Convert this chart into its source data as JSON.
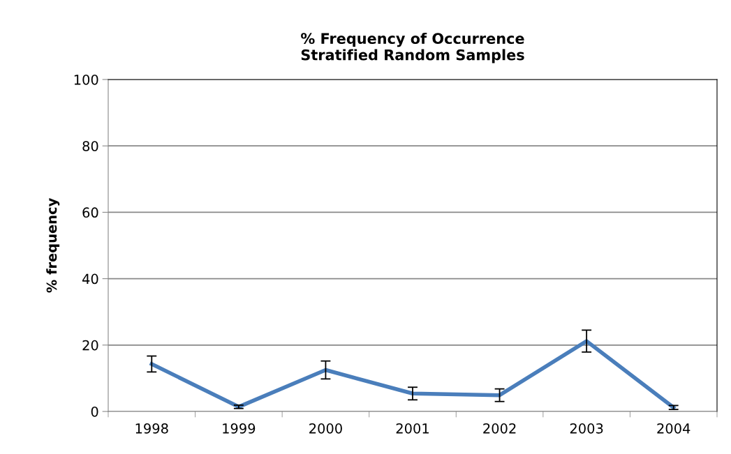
{
  "chart_data": {
    "type": "line",
    "title": "% Frequency of Occurrence\nStratified Random Samples",
    "ylabel": "% frequency",
    "categories": [
      "1998",
      "1999",
      "2000",
      "2001",
      "2002",
      "2003",
      "2004"
    ],
    "series": [
      {
        "color": "#4a7ebb",
        "values": [
          14.3,
          1.4,
          12.5,
          5.4,
          4.9,
          21.2,
          1.2
        ],
        "errors": [
          2.4,
          0.5,
          2.7,
          1.9,
          1.9,
          3.3,
          0.6
        ]
      }
    ],
    "ylim": [
      0,
      100
    ],
    "yticks": [
      0,
      20,
      40,
      60,
      80,
      100
    ],
    "grid": "y",
    "legend": false,
    "marker": "none",
    "line_style": "solid"
  }
}
